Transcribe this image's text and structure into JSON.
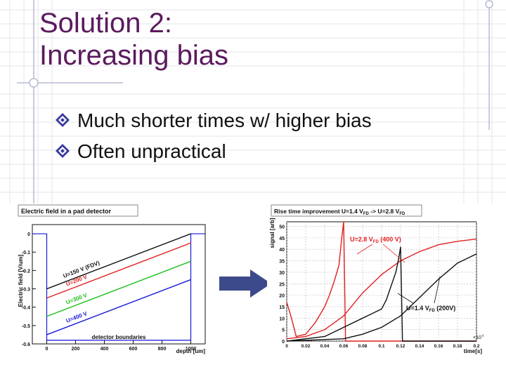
{
  "slide": {
    "title_line1": "Solution 2:",
    "title_line2": "Increasing bias",
    "bullets": [
      "Much shorter times w/ higher bias",
      "Often unpractical"
    ],
    "colors": {
      "title": "#5b1a5e",
      "bullet_icon": "#3a3aa0",
      "arrow": "#3c4a8c"
    },
    "arrow_icon": "right-arrow-icon"
  },
  "chart_data": [
    {
      "type": "line",
      "title": "Electric field in a pad detector",
      "xlabel": "depth [um]",
      "ylabel": "Electric field [V/um]",
      "xlim": [
        -100,
        1100
      ],
      "ylim": [
        -0.6,
        0.05
      ],
      "xticks": [
        "0",
        "200",
        "400",
        "600",
        "800",
        "1000"
      ],
      "yticks": [
        "0",
        "-0.1",
        "-0.2",
        "-0.3",
        "-0.4",
        "-0.5",
        "-0.6"
      ],
      "annotation": "detector boundaries",
      "series": [
        {
          "name": "U=150 V (FDV)",
          "color": "#111111",
          "x": [
            0,
            1000
          ],
          "y": [
            -0.3,
            0.0
          ]
        },
        {
          "name": "U=200 V",
          "color": "#e02020",
          "x": [
            0,
            1000
          ],
          "y": [
            -0.35,
            -0.05
          ]
        },
        {
          "name": "U=300 V",
          "color": "#18c018",
          "x": [
            0,
            1000
          ],
          "y": [
            -0.45,
            -0.15
          ]
        },
        {
          "name": "U=400 V",
          "color": "#1818d8",
          "x": [
            0,
            1000
          ],
          "y": [
            -0.55,
            -0.25
          ]
        }
      ]
    },
    {
      "type": "line",
      "title": "Rise time improvement U=1.4 VFD -> U=2.8 VFD",
      "xlabel": "time[s]",
      "ylabel": "signal [arb]",
      "xlim": [
        0,
        0.2
      ],
      "ylim": [
        0,
        52
      ],
      "xticks": [
        "0",
        "0.02",
        "0.04",
        "0.06",
        "0.08",
        "0.1",
        "0.12",
        "0.14",
        "0.16",
        "0.18",
        "0.2"
      ],
      "yticks": [
        "0",
        "5",
        "10",
        "15",
        "20",
        "25",
        "30",
        "35",
        "40",
        "45",
        "50"
      ],
      "x_multiplier": "x10^-6",
      "annotations": [
        "U=2.8 VFD (400 V)",
        "U=1.4 VFD (200V)"
      ],
      "series": [
        {
          "name": "U=2.8 VFD (400 V)",
          "kind": "induced current",
          "color": "#e02020",
          "x": [
            0,
            0.005,
            0.01,
            0.02,
            0.03,
            0.04,
            0.045,
            0.05,
            0.055,
            0.058,
            0.06,
            0.062,
            0.2
          ],
          "y": [
            17,
            10,
            2,
            3,
            8,
            15,
            20,
            26,
            33,
            45,
            52,
            0,
            0
          ]
        },
        {
          "name": "U=2.8 VFD (400 V)",
          "kind": "integrated signal",
          "color": "#e02020",
          "x": [
            0,
            0.02,
            0.04,
            0.06,
            0.08,
            0.1,
            0.12,
            0.14,
            0.16,
            0.18,
            0.2
          ],
          "y": [
            1,
            2,
            5,
            11,
            21,
            29,
            35,
            39,
            42,
            43.5,
            44.5
          ]
        },
        {
          "name": "U=1.4 VFD (200V)",
          "kind": "induced current",
          "color": "#111111",
          "x": [
            0,
            0.04,
            0.06,
            0.08,
            0.09,
            0.1,
            0.105,
            0.11,
            0.115,
            0.118,
            0.12,
            0.122,
            0.2
          ],
          "y": [
            0,
            2,
            6,
            10,
            12,
            14,
            18,
            24,
            30,
            36,
            41,
            0,
            0
          ]
        },
        {
          "name": "U=1.4 VFD (200V)",
          "kind": "integrated signal",
          "color": "#111111",
          "x": [
            0,
            0.06,
            0.08,
            0.1,
            0.12,
            0.14,
            0.16,
            0.18,
            0.2
          ],
          "y": [
            0,
            1,
            3,
            6,
            11,
            19,
            27,
            34,
            38
          ]
        }
      ]
    }
  ]
}
